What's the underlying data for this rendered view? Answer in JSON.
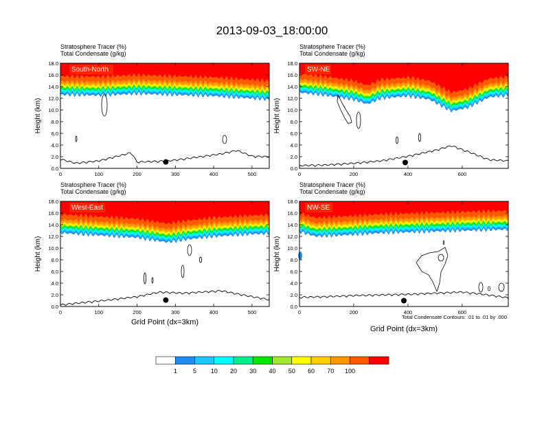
{
  "figure": {
    "title": "2013-09-03_18:00:00",
    "footnote": "Total Condensate Contours: .01 to .01 by .000"
  },
  "colorbar": {
    "colors": [
      "#ffffff",
      "#1e8ff0",
      "#1ec8ff",
      "#00ffff",
      "#00f08c",
      "#00e600",
      "#a0e632",
      "#ffff00",
      "#ffcd00",
      "#ff9600",
      "#ff5a00",
      "#ff0000"
    ],
    "labels": [
      "1",
      "5",
      "10",
      "20",
      "30",
      "40",
      "50",
      "60",
      "70",
      "100"
    ]
  },
  "chart_data": [
    {
      "type": "contour",
      "title": "South-North",
      "header_line1": "Stratosphere Tracer   (%)",
      "header_line2": "Total Condensate   (g/kg)",
      "ylabel": "Height (km)",
      "xlabel": "",
      "xlim": [
        0,
        545
      ],
      "ylim": [
        0,
        18
      ],
      "xticks": [
        "0",
        "100",
        "200",
        "300",
        "400",
        "500"
      ],
      "yticks": [
        "0.0",
        "2.0",
        "4.0",
        "6.0",
        "8.0",
        "10.0",
        "12.0",
        "14.0",
        "16.0",
        "18.0"
      ],
      "tracer_base_km": [
        [
          0,
          12.6
        ],
        [
          100,
          12.5
        ],
        [
          200,
          12.8
        ],
        [
          300,
          12.6
        ],
        [
          400,
          12.4
        ],
        [
          500,
          12.0
        ],
        [
          545,
          11.8
        ]
      ],
      "terrain_km": [
        [
          0,
          1.5
        ],
        [
          40,
          0.8
        ],
        [
          100,
          1.2
        ],
        [
          185,
          2.6
        ],
        [
          200,
          1.0
        ],
        [
          280,
          1.2
        ],
        [
          330,
          1.6
        ],
        [
          420,
          2.4
        ],
        [
          460,
          3.0
        ],
        [
          500,
          2.0
        ],
        [
          545,
          1.9
        ]
      ],
      "marker": [
        275,
        1.1
      ]
    },
    {
      "type": "contour",
      "title": "SW-NE",
      "header_line1": "Stratosphere Tracer   (%)",
      "header_line2": "Total Condensate   (g/kg)",
      "ylabel": "Height (km)",
      "xlabel": "",
      "xlim": [
        0,
        770
      ],
      "ylim": [
        0,
        18
      ],
      "xticks": [
        "0",
        "200",
        "400",
        "600"
      ],
      "yticks": [
        "0.0",
        "2.0",
        "4.0",
        "6.0",
        "8.0",
        "10.0",
        "12.0",
        "14.0",
        "16.0",
        "18.0"
      ],
      "tracer_base_km": [
        [
          0,
          13.0
        ],
        [
          100,
          12.5
        ],
        [
          200,
          11.8
        ],
        [
          250,
          11.0
        ],
        [
          300,
          12.0
        ],
        [
          400,
          12.4
        ],
        [
          480,
          11.8
        ],
        [
          560,
          9.8
        ],
        [
          620,
          10.4
        ],
        [
          700,
          12.2
        ],
        [
          770,
          12.5
        ]
      ],
      "terrain_km": [
        [
          0,
          0.4
        ],
        [
          100,
          0.5
        ],
        [
          200,
          0.8
        ],
        [
          300,
          1.2
        ],
        [
          400,
          2.0
        ],
        [
          500,
          3.0
        ],
        [
          560,
          3.8
        ],
        [
          620,
          2.8
        ],
        [
          700,
          1.4
        ],
        [
          770,
          1.2
        ]
      ],
      "marker": [
        390,
        1.0
      ]
    },
    {
      "type": "contour",
      "title": "West-East",
      "header_line1": "Stratosphere Tracer   (%)",
      "header_line2": "Total Condensate   (g/kg)",
      "ylabel": "Height (km)",
      "xlabel": "Grid Point (dx=3km)",
      "xlim": [
        0,
        545
      ],
      "ylim": [
        0,
        18
      ],
      "xticks": [
        "0",
        "100",
        "200",
        "300",
        "400",
        "500"
      ],
      "yticks": [
        "0.0",
        "2.0",
        "4.0",
        "6.0",
        "8.0",
        "10.0",
        "12.0",
        "14.0",
        "16.0",
        "18.0"
      ],
      "tracer_base_km": [
        [
          0,
          12.6
        ],
        [
          100,
          12.2
        ],
        [
          200,
          11.8
        ],
        [
          280,
          11.0
        ],
        [
          330,
          11.5
        ],
        [
          400,
          12.0
        ],
        [
          500,
          12.4
        ],
        [
          545,
          12.5
        ]
      ],
      "terrain_km": [
        [
          0,
          0.2
        ],
        [
          60,
          0.6
        ],
        [
          120,
          1.0
        ],
        [
          200,
          1.6
        ],
        [
          260,
          2.4
        ],
        [
          320,
          2.2
        ],
        [
          420,
          2.6
        ],
        [
          500,
          1.6
        ],
        [
          545,
          1.1
        ]
      ],
      "marker": [
        275,
        1.1
      ]
    },
    {
      "type": "contour",
      "title": "NW-SE",
      "header_line1": "Stratosphere Tracer   (%)",
      "header_line2": "Total Condensate   (g/kg)",
      "ylabel": "Height (km)",
      "xlabel": "Grid Point (dx=3km)",
      "xlim": [
        0,
        770
      ],
      "ylim": [
        0,
        18
      ],
      "xticks": [
        "0",
        "200",
        "400",
        "600"
      ],
      "yticks": [
        "0.0",
        "2.0",
        "4.0",
        "6.0",
        "8.0",
        "10.0",
        "12.0",
        "14.0",
        "16.0",
        "18.0"
      ],
      "tracer_base_km": [
        [
          0,
          12.8
        ],
        [
          60,
          12.0
        ],
        [
          150,
          12.2
        ],
        [
          300,
          12.6
        ],
        [
          450,
          12.8
        ],
        [
          600,
          13.0
        ],
        [
          770,
          13.2
        ]
      ],
      "terrain_km": [
        [
          0,
          1.5
        ],
        [
          100,
          1.6
        ],
        [
          200,
          1.8
        ],
        [
          300,
          1.9
        ],
        [
          400,
          2.0
        ],
        [
          500,
          2.2
        ],
        [
          600,
          2.4
        ],
        [
          680,
          2.0
        ],
        [
          770,
          1.4
        ]
      ],
      "marker": [
        385,
        1.0
      ]
    }
  ]
}
